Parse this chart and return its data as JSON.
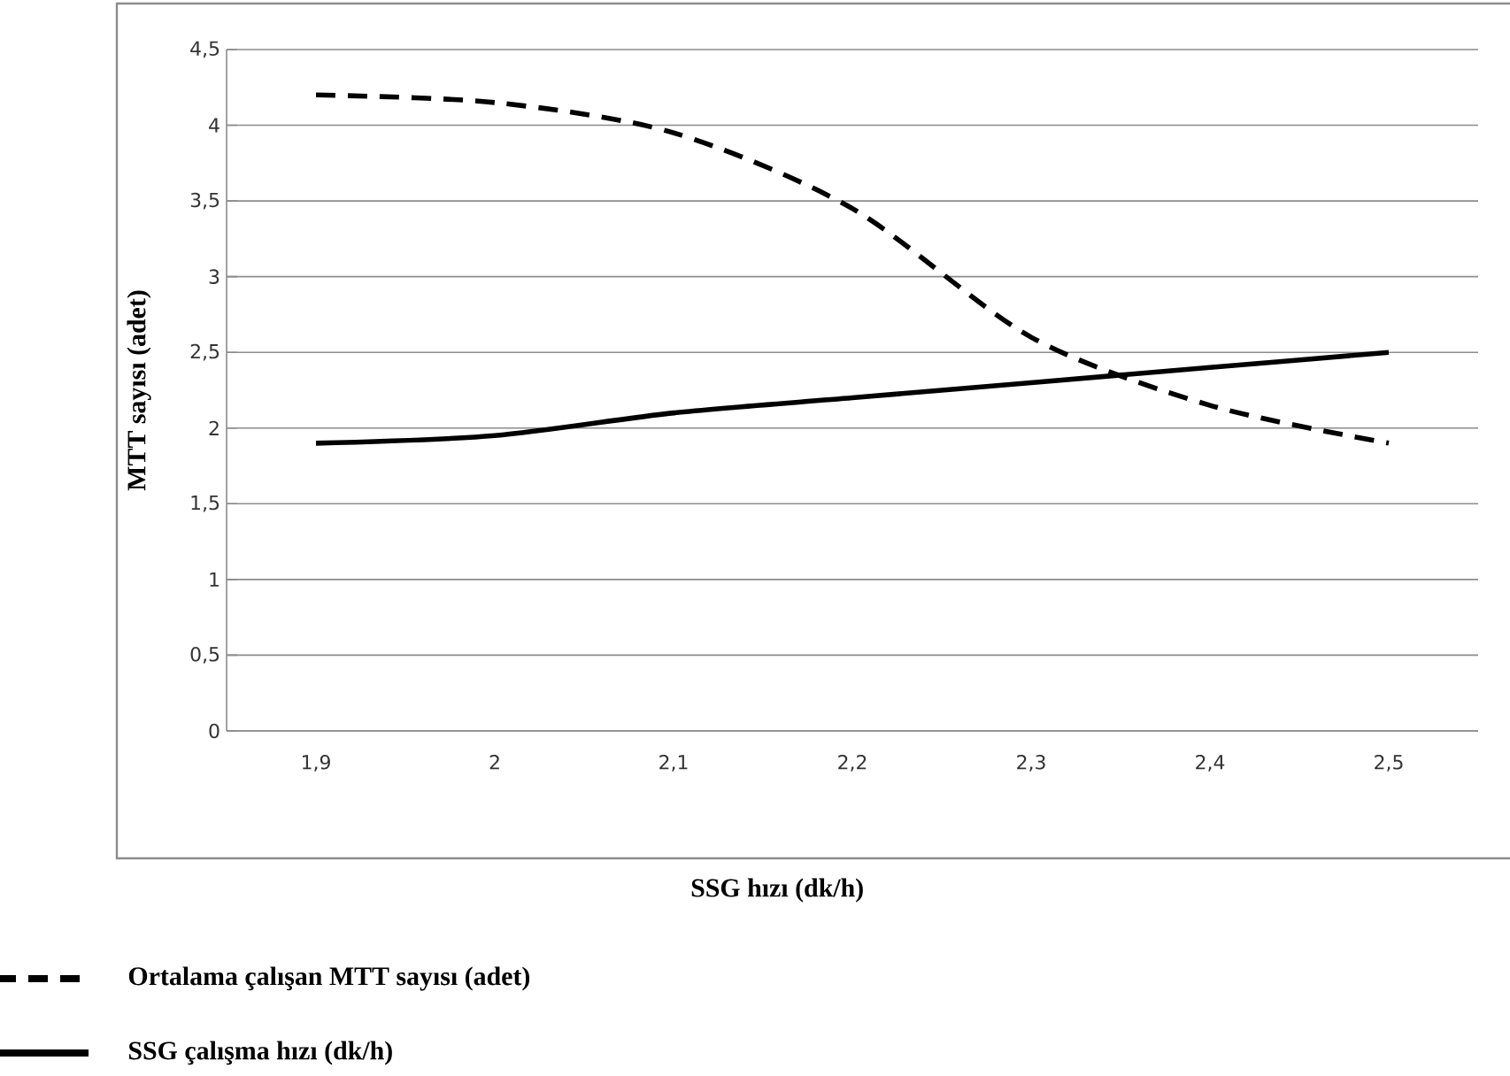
{
  "chart_data": {
    "type": "line",
    "xlabel": "SSG hızı (dk/h)",
    "ylabel": "MTT sayısı (adet)",
    "categories": [
      "1,9",
      "2",
      "2,1",
      "2,2",
      "2,3",
      "2,4",
      "2,5"
    ],
    "series": [
      {
        "name": "Ortalama çalışan MTT sayısı (adet)",
        "color": "#000000",
        "line_style": "dashed",
        "values": [
          4.2,
          4.15,
          3.95,
          3.45,
          2.6,
          2.15,
          1.9
        ]
      },
      {
        "name": "SSG çalışma hızı (dk/h)",
        "color": "#000000",
        "line_style": "solid",
        "values": [
          1.9,
          1.95,
          2.1,
          2.2,
          2.3,
          2.4,
          2.5
        ]
      }
    ],
    "ylim": [
      0,
      4.5
    ],
    "yticks": [
      0,
      {
        "value": 0.5,
        "label": "0,5"
      },
      1,
      {
        "value": 1.5,
        "label": "1,5"
      },
      2,
      {
        "value": 2.5,
        "label": "2,5"
      },
      3,
      {
        "value": 3.5,
        "label": "3,5"
      },
      4,
      {
        "value": 4.5,
        "label": "4,5"
      }
    ],
    "grid": "y",
    "legend": "bottom left",
    "marker": "none"
  }
}
